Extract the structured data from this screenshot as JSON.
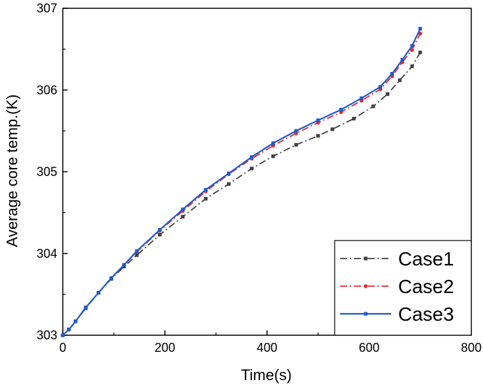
{
  "chart_data": {
    "type": "line",
    "xlabel": "Time(s)",
    "ylabel": "Average core temp.(K)",
    "xlim": [
      0,
      800
    ],
    "ylim": [
      303,
      307
    ],
    "xticks": [
      0,
      200,
      400,
      600,
      800
    ],
    "yticks": [
      303,
      304,
      305,
      306,
      307
    ],
    "grid": false,
    "legend_position": "bottom-right",
    "series": [
      {
        "name": "Case1",
        "color": "#404040",
        "dash": "dash-dot",
        "marker": "square",
        "x": [
          0,
          12,
          25,
          45,
          70,
          95,
          120,
          145,
          190,
          235,
          280,
          325,
          370,
          412,
          457,
          500,
          528,
          570,
          608,
          636,
          660,
          684,
          700
        ],
        "y": [
          303.0,
          303.07,
          303.17,
          303.33,
          303.52,
          303.69,
          303.84,
          303.98,
          304.23,
          304.45,
          304.67,
          304.85,
          305.04,
          305.19,
          305.33,
          305.44,
          305.52,
          305.65,
          305.8,
          305.95,
          306.12,
          306.29,
          306.46
        ]
      },
      {
        "name": "Case2",
        "color": "#e8262e",
        "dash": "dash-dot",
        "marker": "circle",
        "x": [
          0,
          12,
          25,
          45,
          70,
          95,
          120,
          145,
          190,
          235,
          280,
          325,
          370,
          412,
          457,
          500,
          545,
          585,
          622,
          645,
          665,
          684,
          700
        ],
        "y": [
          303.0,
          303.07,
          303.17,
          303.34,
          303.52,
          303.7,
          303.86,
          304.02,
          304.28,
          304.52,
          304.76,
          304.97,
          305.16,
          305.32,
          305.47,
          305.6,
          305.73,
          305.87,
          306.01,
          306.17,
          306.34,
          306.49,
          306.69
        ]
      },
      {
        "name": "Case3",
        "color": "#1f5cc8",
        "dash": "solid",
        "marker": "square",
        "x": [
          0,
          12,
          25,
          45,
          70,
          95,
          120,
          145,
          190,
          235,
          280,
          325,
          370,
          412,
          457,
          500,
          545,
          585,
          622,
          645,
          665,
          684,
          700
        ],
        "y": [
          303.0,
          303.07,
          303.17,
          303.34,
          303.52,
          303.7,
          303.86,
          304.03,
          304.29,
          304.54,
          304.78,
          304.98,
          305.18,
          305.35,
          305.5,
          305.63,
          305.76,
          305.9,
          306.04,
          306.2,
          306.37,
          306.54,
          306.75
        ]
      }
    ]
  }
}
